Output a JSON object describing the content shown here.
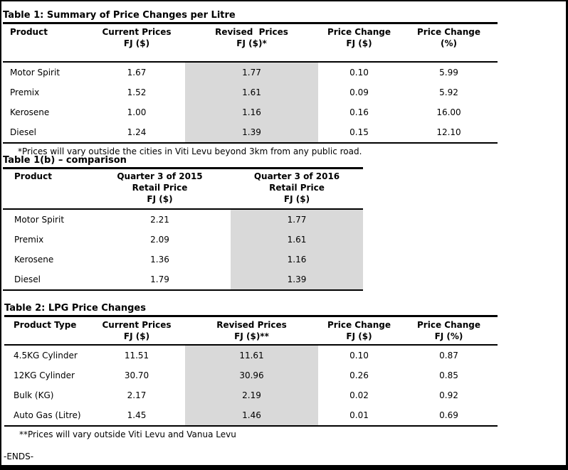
{
  "page": {
    "ends_label": "-ENDS-"
  },
  "colors": {
    "shading": "#d9d9d9",
    "border": "#000000",
    "text": "#000000",
    "background": "#ffffff"
  },
  "table1": {
    "title": "Table 1: Summary of Price Changes per Litre",
    "headers": [
      {
        "l1": "Product",
        "l2": ""
      },
      {
        "l1": "Current Prices",
        "l2": "FJ ($)"
      },
      {
        "l1": "Revised  Prices",
        "l2": "FJ ($)*"
      },
      {
        "l1": "Price Change",
        "l2": "FJ ($)"
      },
      {
        "l1": "Price Change",
        "l2": "(%)"
      }
    ],
    "rows": [
      [
        "Motor Spirit",
        "1.67",
        "1.77",
        "0.10",
        "5.99"
      ],
      [
        "Premix",
        "1.52",
        "1.61",
        "0.09",
        "5.92"
      ],
      [
        "Kerosene",
        "1.00",
        "1.16",
        "0.16",
        "16.00"
      ],
      [
        "Diesel",
        "1.24",
        "1.39",
        "0.15",
        "12.10"
      ]
    ],
    "footnote": "*Prices will vary outside the cities in Viti Levu beyond 3km from any public road."
  },
  "table1b": {
    "title": "Table 1(b) – comparison",
    "headers": [
      {
        "l1": "Product",
        "l2": "",
        "l3": ""
      },
      {
        "l1": "Quarter 3 of 2015",
        "l2": "Retail Price",
        "l3": "FJ ($)"
      },
      {
        "l1": "Quarter 3 of 2016",
        "l2": "Retail Price",
        "l3": "FJ ($)"
      }
    ],
    "rows": [
      [
        "Motor Spirit",
        "2.21",
        "1.77"
      ],
      [
        "Premix",
        "2.09",
        "1.61"
      ],
      [
        "Kerosene",
        "1.36",
        "1.16"
      ],
      [
        "Diesel",
        "1.79",
        "1.39"
      ]
    ]
  },
  "table2": {
    "title": "Table 2: LPG Price Changes",
    "headers": [
      {
        "l1": "Product Type",
        "l2": ""
      },
      {
        "l1": "Current Prices",
        "l2": "FJ ($)"
      },
      {
        "l1": "Revised Prices",
        "l2": "FJ ($)**"
      },
      {
        "l1": "Price Change",
        "l2": "FJ ($)"
      },
      {
        "l1": "Price Change",
        "l2": "FJ (%)"
      }
    ],
    "rows": [
      [
        "4.5KG Cylinder",
        "11.51",
        "11.61",
        "0.10",
        "0.87"
      ],
      [
        "12KG Cylinder",
        "30.70",
        "30.96",
        "0.26",
        "0.85"
      ],
      [
        "Bulk (KG)",
        "2.17",
        "2.19",
        "0.02",
        "0.92"
      ],
      [
        "Auto Gas (Litre)",
        "1.45",
        "1.46",
        "0.01",
        "0.69"
      ]
    ],
    "footnote": "**Prices will vary outside Viti Levu and Vanua Levu"
  }
}
